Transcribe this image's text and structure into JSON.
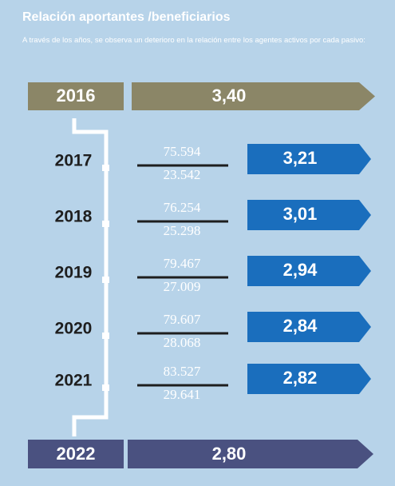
{
  "title": "Relación aportantes /beneficiarios",
  "subtitle": "A través de los años, se observa un deterioro en la relación entre los agentes activos por cada pasivo:",
  "first": {
    "year": "2016",
    "ratio": "3,40"
  },
  "rows": [
    {
      "year": "2017",
      "numerator": "75.594",
      "denominator": "23.542",
      "ratio": "3,21"
    },
    {
      "year": "2018",
      "numerator": "76.254",
      "denominator": "25.298",
      "ratio": "3,01"
    },
    {
      "year": "2019",
      "numerator": "79.467",
      "denominator": "27.009",
      "ratio": "2,94"
    },
    {
      "year": "2020",
      "numerator": "79.607",
      "denominator": "28.068",
      "ratio": "2,84"
    },
    {
      "year": "2021",
      "numerator": "83.527",
      "denominator": "29.641",
      "ratio": "2,82"
    }
  ],
  "last": {
    "year": "2022",
    "ratio": "2,80"
  }
}
